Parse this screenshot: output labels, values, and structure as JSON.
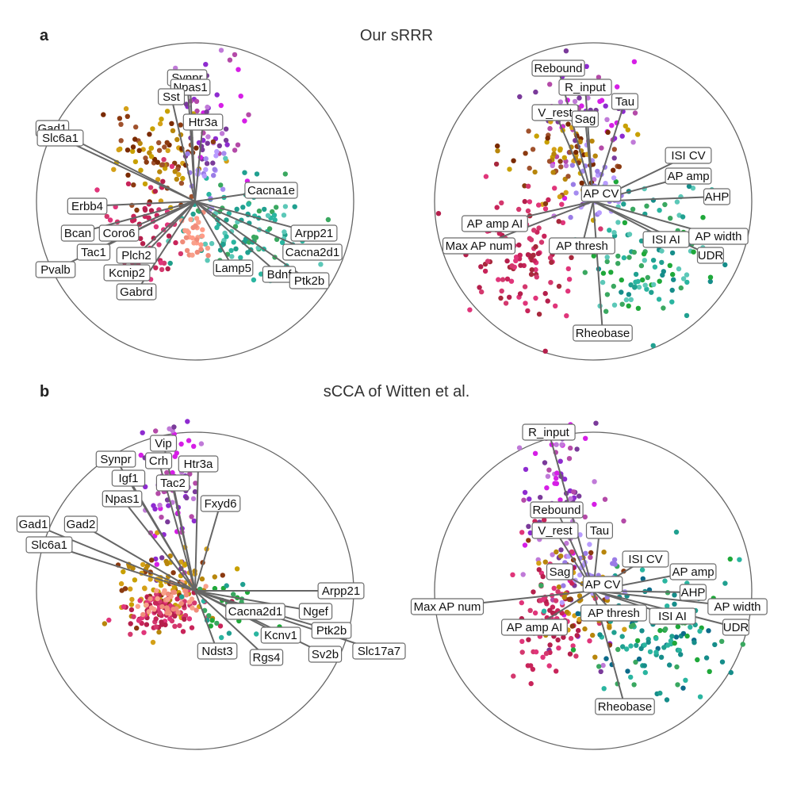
{
  "figure": {
    "panels": [
      {
        "letter": "a",
        "title": "Our sRRR"
      },
      {
        "letter": "b",
        "title": "sCCA of Witten et al."
      }
    ]
  },
  "chart_data": [
    {
      "type": "scatter",
      "panel": "a",
      "title": "Our sRRR",
      "modality": "genes",
      "grid": false,
      "xlim": [
        -1,
        1
      ],
      "ylim": [
        -1,
        1
      ],
      "loadings": [
        {
          "label": "Synpr",
          "x": -0.05,
          "y": 0.78
        },
        {
          "label": "Npas1",
          "x": -0.03,
          "y": 0.72
        },
        {
          "label": "Sst",
          "x": -0.15,
          "y": 0.66
        },
        {
          "label": "Htr3a",
          "x": 0.05,
          "y": 0.5
        },
        {
          "label": "Gad1",
          "x": -0.9,
          "y": 0.46
        },
        {
          "label": "Slc6a1",
          "x": -0.85,
          "y": 0.4
        },
        {
          "label": "Erbb4",
          "x": -0.68,
          "y": -0.03
        },
        {
          "label": "Bcan",
          "x": -0.74,
          "y": -0.2
        },
        {
          "label": "Coro6",
          "x": -0.48,
          "y": -0.2
        },
        {
          "label": "Tac1",
          "x": -0.64,
          "y": -0.32
        },
        {
          "label": "Plch2",
          "x": -0.37,
          "y": -0.34
        },
        {
          "label": "Pvalb",
          "x": -0.88,
          "y": -0.43
        },
        {
          "label": "Kcnip2",
          "x": -0.43,
          "y": -0.45
        },
        {
          "label": "Gabrd",
          "x": -0.37,
          "y": -0.57
        },
        {
          "label": "Cacna1e",
          "x": 0.48,
          "y": 0.07
        },
        {
          "label": "Arpp21",
          "x": 0.75,
          "y": -0.2
        },
        {
          "label": "Cacna2d1",
          "x": 0.74,
          "y": -0.32
        },
        {
          "label": "Lamp5",
          "x": 0.24,
          "y": -0.42
        },
        {
          "label": "Bdnf",
          "x": 0.53,
          "y": -0.46
        },
        {
          "label": "Ptk2b",
          "x": 0.72,
          "y": -0.5
        }
      ]
    },
    {
      "type": "scatter",
      "panel": "a",
      "title": "Our sRRR",
      "modality": "electrophysiology",
      "grid": false,
      "xlim": [
        -1,
        1
      ],
      "ylim": [
        -1,
        1
      ],
      "loadings": [
        {
          "label": "Rebound",
          "x": -0.22,
          "y": 0.84
        },
        {
          "label": "R_input",
          "x": -0.05,
          "y": 0.72
        },
        {
          "label": "Tau",
          "x": 0.2,
          "y": 0.63
        },
        {
          "label": "V_rest",
          "x": -0.24,
          "y": 0.56
        },
        {
          "label": "Sag",
          "x": -0.05,
          "y": 0.52
        },
        {
          "label": "ISI CV",
          "x": 0.6,
          "y": 0.29
        },
        {
          "label": "AP amp",
          "x": 0.6,
          "y": 0.16
        },
        {
          "label": "AP CV",
          "x": 0.05,
          "y": 0.05
        },
        {
          "label": "AHP",
          "x": 0.78,
          "y": 0.03
        },
        {
          "label": "AP amp AI",
          "x": -0.62,
          "y": -0.14
        },
        {
          "label": "ISI AI",
          "x": 0.46,
          "y": -0.24
        },
        {
          "label": "AP width",
          "x": 0.79,
          "y": -0.22
        },
        {
          "label": "Max AP num",
          "x": -0.72,
          "y": -0.28
        },
        {
          "label": "AP thresh",
          "x": -0.07,
          "y": -0.28
        },
        {
          "label": "UDR",
          "x": 0.74,
          "y": -0.34
        },
        {
          "label": "Rheobase",
          "x": 0.06,
          "y": -0.83
        }
      ]
    },
    {
      "type": "scatter",
      "panel": "b",
      "title": "sCCA of Witten et al.",
      "modality": "genes",
      "grid": false,
      "xlim": [
        -1,
        1
      ],
      "ylim": [
        -1,
        1
      ],
      "loadings": [
        {
          "label": "Vip",
          "x": -0.2,
          "y": 0.93
        },
        {
          "label": "Synpr",
          "x": -0.5,
          "y": 0.83
        },
        {
          "label": "Crh",
          "x": -0.23,
          "y": 0.82
        },
        {
          "label": "Htr3a",
          "x": 0.02,
          "y": 0.8
        },
        {
          "label": "Igf1",
          "x": -0.42,
          "y": 0.71
        },
        {
          "label": "Tac2",
          "x": -0.14,
          "y": 0.68
        },
        {
          "label": "Npas1",
          "x": -0.46,
          "y": 0.58
        },
        {
          "label": "Fxyd6",
          "x": 0.16,
          "y": 0.55
        },
        {
          "label": "Gad1",
          "x": -1.02,
          "y": 0.42
        },
        {
          "label": "Gad2",
          "x": -0.72,
          "y": 0.42
        },
        {
          "label": "Slc6a1",
          "x": -0.92,
          "y": 0.29
        },
        {
          "label": "Arpp21",
          "x": 0.92,
          "y": 0.0
        },
        {
          "label": "Cacna2d1",
          "x": 0.38,
          "y": -0.13
        },
        {
          "label": "Ngef",
          "x": 0.76,
          "y": -0.13
        },
        {
          "label": "Kcnv1",
          "x": 0.54,
          "y": -0.28
        },
        {
          "label": "Ptk2b",
          "x": 0.86,
          "y": -0.25
        },
        {
          "label": "Ndst3",
          "x": 0.14,
          "y": -0.38
        },
        {
          "label": "Rgs4",
          "x": 0.45,
          "y": -0.42
        },
        {
          "label": "Sv2b",
          "x": 0.82,
          "y": -0.4
        },
        {
          "label": "Slc17a7",
          "x": 1.16,
          "y": -0.38
        }
      ]
    },
    {
      "type": "scatter",
      "panel": "b",
      "title": "sCCA of Witten et al.",
      "modality": "electrophysiology",
      "grid": false,
      "xlim": [
        -1,
        1
      ],
      "ylim": [
        -1,
        1
      ],
      "loadings": [
        {
          "label": "R_input",
          "x": -0.28,
          "y": 1.0
        },
        {
          "label": "Rebound",
          "x": -0.23,
          "y": 0.51
        },
        {
          "label": "V_rest",
          "x": -0.24,
          "y": 0.38
        },
        {
          "label": "Tau",
          "x": 0.04,
          "y": 0.38
        },
        {
          "label": "ISI CV",
          "x": 0.33,
          "y": 0.2
        },
        {
          "label": "Sag",
          "x": -0.21,
          "y": 0.12
        },
        {
          "label": "AP amp",
          "x": 0.63,
          "y": 0.12
        },
        {
          "label": "AP CV",
          "x": 0.06,
          "y": 0.04
        },
        {
          "label": "AHP",
          "x": 0.63,
          "y": -0.01
        },
        {
          "label": "Max AP num",
          "x": -0.92,
          "y": -0.1
        },
        {
          "label": "AP width",
          "x": 0.91,
          "y": -0.1
        },
        {
          "label": "AP thresh",
          "x": 0.13,
          "y": -0.14
        },
        {
          "label": "ISI AI",
          "x": 0.5,
          "y": -0.16
        },
        {
          "label": "AP amp AI",
          "x": -0.37,
          "y": -0.23
        },
        {
          "label": "UDR",
          "x": 0.9,
          "y": -0.23
        },
        {
          "label": "Rheobase",
          "x": 0.2,
          "y": -0.73
        }
      ]
    }
  ]
}
